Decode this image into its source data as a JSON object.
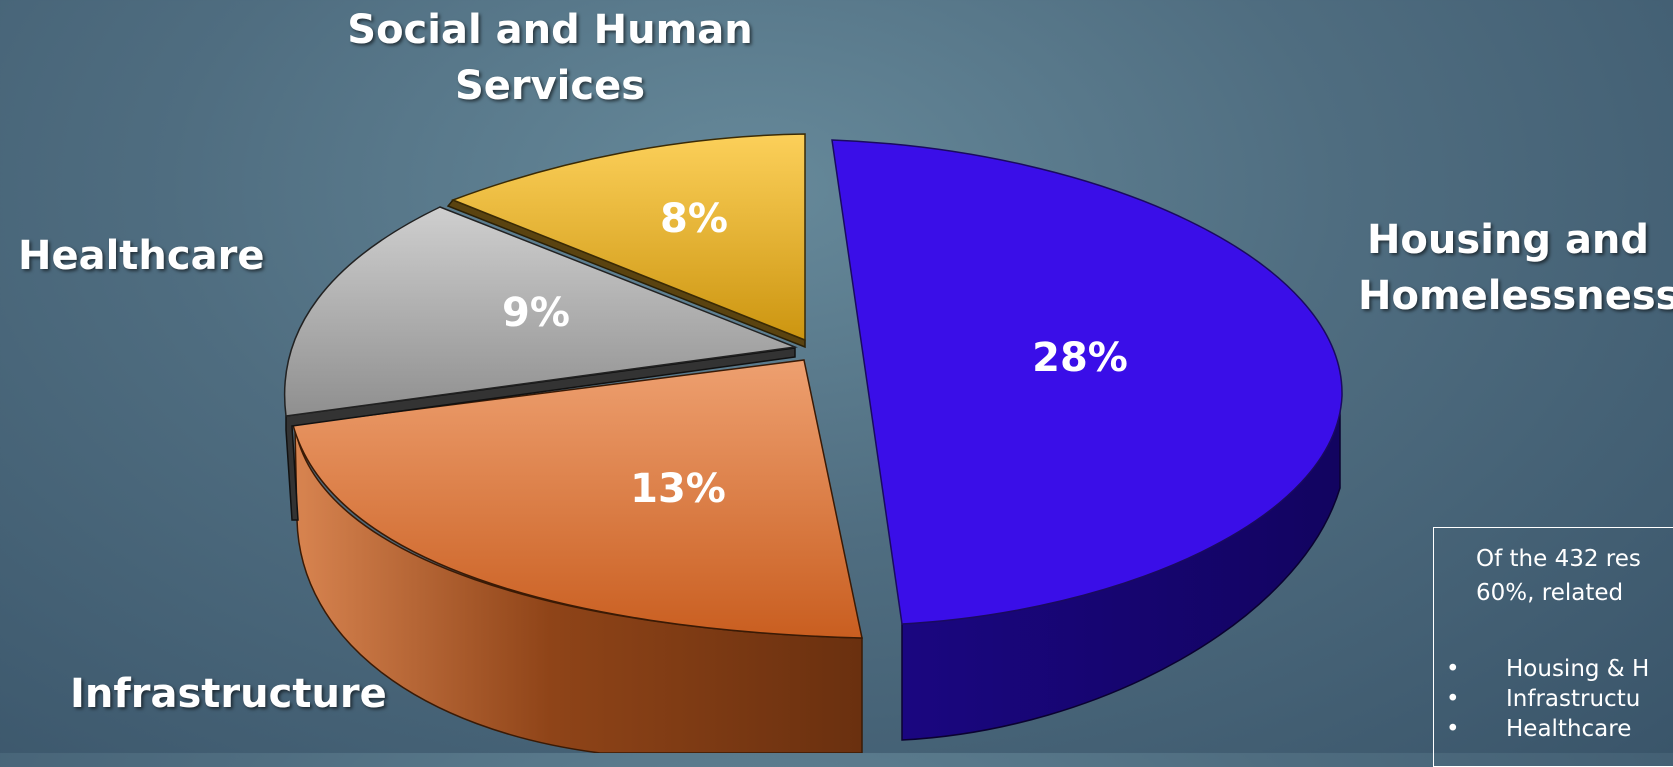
{
  "chart_data": {
    "type": "pie",
    "title": "",
    "slices": [
      {
        "label": "Housing and Homelessness",
        "value_label": "28%",
        "value": 28,
        "color": "#3a0ee8"
      },
      {
        "label": "Infrastructure",
        "value_label": "13%",
        "value": 13,
        "color": "#e07a3e"
      },
      {
        "label": "Healthcare",
        "value_label": "9%",
        "value": 9,
        "color": "#b3b3b3"
      },
      {
        "label": "Social and Human Services",
        "value_label": "8%",
        "value": 8,
        "color": "#f3c23a"
      }
    ],
    "labels": {
      "housing": "Housing and\nHomelessness",
      "infrastructure": "Infrastructure",
      "healthcare": "Healthcare",
      "social": "Social and Human\nServices"
    }
  },
  "note": {
    "intro": "Of the 432 res\n60%, related",
    "items": [
      "Housing & H",
      "Infrastructu",
      "Healthcare"
    ],
    "bullet": "•"
  }
}
